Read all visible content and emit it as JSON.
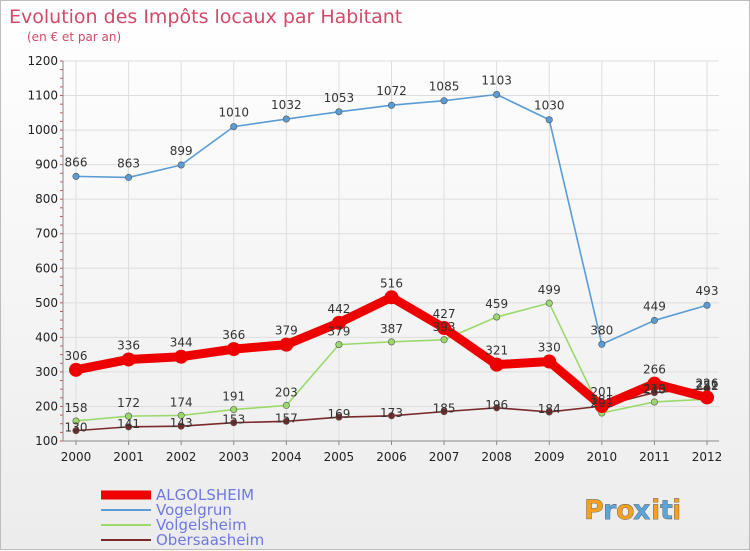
{
  "chart_data": {
    "type": "line",
    "title": "Evolution des Impôts locaux par Habitant",
    "subtitle": "(en € et par an)",
    "xlabel": "",
    "ylabel": "",
    "x": [
      "2000",
      "2001",
      "2002",
      "2003",
      "2004",
      "2005",
      "2006",
      "2007",
      "2008",
      "2009",
      "2010",
      "2011",
      "2012"
    ],
    "ylim": [
      100,
      1200
    ],
    "yticks": [
      100,
      200,
      300,
      400,
      500,
      600,
      700,
      800,
      900,
      1000,
      1100,
      1200
    ],
    "grid": true,
    "legend_position": "bottom-left",
    "series": [
      {
        "name": "ALGOLSHEIM",
        "color": "#ee0000",
        "values": [
          306,
          336,
          344,
          366,
          379,
          442,
          516,
          427,
          321,
          330,
          201,
          266,
          226
        ]
      },
      {
        "name": "Vogelgrun",
        "color": "#5a9cd6",
        "values": [
          866,
          863,
          899,
          1010,
          1032,
          1053,
          1072,
          1085,
          1103,
          1030,
          380,
          449,
          493
        ]
      },
      {
        "name": "Volgelsheim",
        "color": "#9bd96b",
        "values": [
          158,
          172,
          174,
          191,
          203,
          379,
          387,
          393,
          459,
          499,
          181,
          213,
          221
        ]
      },
      {
        "name": "Obersaasheim",
        "color": "#7a2a2a",
        "values": [
          130,
          141,
          143,
          153,
          157,
          169,
          173,
          185,
          196,
          184,
          201,
          240,
          252
        ]
      }
    ]
  },
  "logo": {
    "text": "Proxiti",
    "letters": [
      "P",
      "r",
      "o",
      "x",
      "i",
      "t",
      "i"
    ],
    "colors": [
      "#f4a020",
      "#5aa5d9",
      "#f4a020",
      "#5aa5d9",
      "#f4a020",
      "#5aa5d9",
      "#f4a020"
    ]
  }
}
